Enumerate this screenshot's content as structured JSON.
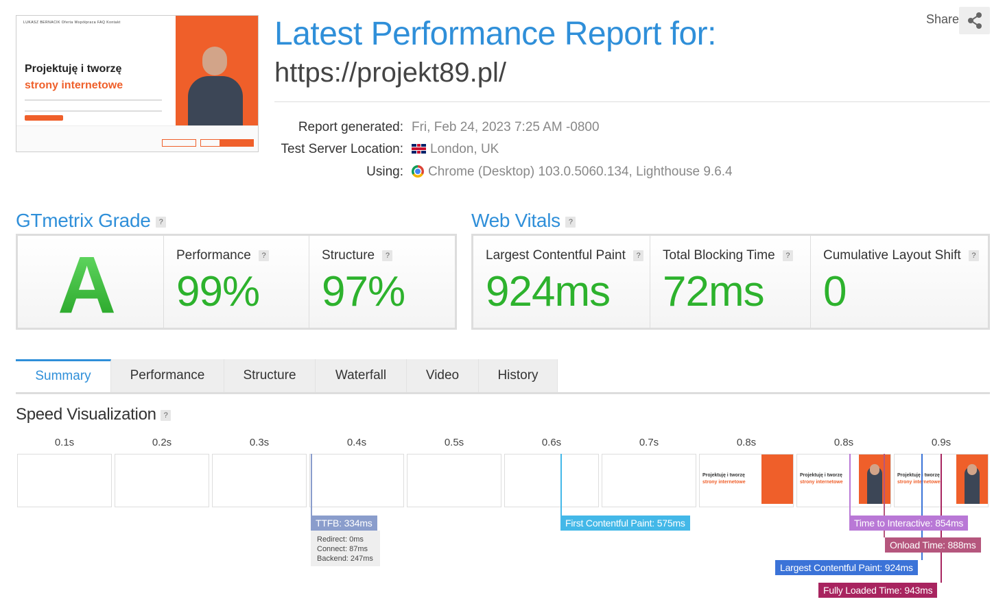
{
  "header": {
    "title": "Latest Performance Report for:",
    "url": "https://projekt89.pl/",
    "share_label": "Share",
    "thumbnail": {
      "nav": "LUKASZ BERNACIK    Oferta    Współpraca    FAQ    Kontakt",
      "headline_1": "Projektuję i tworzę",
      "headline_2": "strony internetowe"
    }
  },
  "meta": {
    "generated_label": "Report generated:",
    "generated_value": "Fri, Feb 24, 2023 7:25 AM -0800",
    "location_label": "Test Server Location:",
    "location_value": "London, UK",
    "using_label": "Using:",
    "using_value": "Chrome (Desktop) 103.0.5060.134, Lighthouse 9.6.4"
  },
  "grade": {
    "section_title": "GTmetrix Grade",
    "letter": "A",
    "performance_label": "Performance",
    "performance_value": "99%",
    "structure_label": "Structure",
    "structure_value": "97%"
  },
  "vitals": {
    "section_title": "Web Vitals",
    "lcp_label": "Largest Contentful Paint",
    "lcp_value": "924ms",
    "tbt_label": "Total Blocking Time",
    "tbt_value": "72ms",
    "cls_label": "Cumulative Layout Shift",
    "cls_value": "0"
  },
  "tabs": [
    "Summary",
    "Performance",
    "Structure",
    "Waterfall",
    "Video",
    "History"
  ],
  "speed": {
    "title": "Speed Visualization",
    "frames": [
      "0.1s",
      "0.2s",
      "0.3s",
      "0.4s",
      "0.5s",
      "0.6s",
      "0.7s",
      "0.8s",
      "0.8s",
      "0.9s"
    ],
    "frame_thumb_line1": "Projektuję i tworzę",
    "frame_thumb_line2": "strony internetowe",
    "markers": {
      "ttfb": "TTFB: 334ms",
      "redirect": "Redirect: 0ms",
      "connect": "Connect: 87ms",
      "backend": "Backend: 247ms",
      "fcp": "First Contentful Paint: 575ms",
      "tti": "Time to Interactive: 854ms",
      "onload": "Onload Time: 888ms",
      "lcp": "Largest Contentful Paint: 924ms",
      "fully_loaded": "Fully Loaded Time: 943ms"
    },
    "colors": {
      "ttfb": "#8a9dcc",
      "fcp": "#43b8e8",
      "tti": "#b978d6",
      "onload": "#b5567d",
      "lcp": "#3b73d8",
      "fully_loaded": "#a8245f"
    }
  }
}
